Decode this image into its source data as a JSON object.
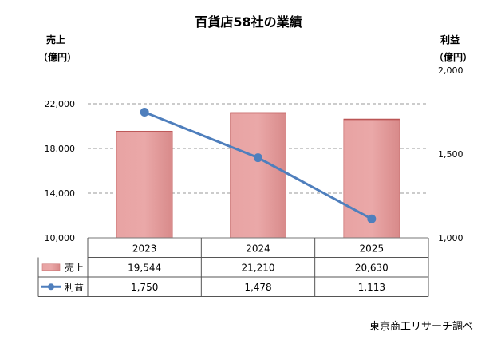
{
  "chart_data": {
    "type": "bar",
    "title": "百貨店58社の業績",
    "categories": [
      "2023",
      "2024",
      "2025"
    ],
    "series": [
      {
        "name": "売上",
        "type": "bar",
        "axis": "left",
        "values": [
          19544,
          21210,
          20630
        ],
        "labels": [
          "19,544",
          "21,210",
          "20,630"
        ],
        "color": "#e8a0a0"
      },
      {
        "name": "利益",
        "type": "line",
        "axis": "right",
        "values": [
          1750,
          1478,
          1113
        ],
        "labels": [
          "1,750",
          "1,478",
          "1,113"
        ],
        "color": "#4f7fbd"
      }
    ],
    "y_left": {
      "label_line1": "売上",
      "label_line2": "（億円）",
      "min": 10000,
      "max": 22000,
      "ticks": [
        10000,
        14000,
        18000,
        22000
      ],
      "tick_labels": [
        "10,000",
        "14,000",
        "18,000",
        "22,000"
      ]
    },
    "y_right": {
      "label_line1": "利益",
      "label_line2": "（億円）",
      "min": 1000,
      "max": 2000,
      "ticks": [
        1000,
        1500,
        2000
      ],
      "tick_labels": [
        "1,000",
        "1,500",
        "2,000"
      ]
    },
    "grid": true,
    "legend": "data-table"
  },
  "source": "東京商工リサーチ調べ"
}
